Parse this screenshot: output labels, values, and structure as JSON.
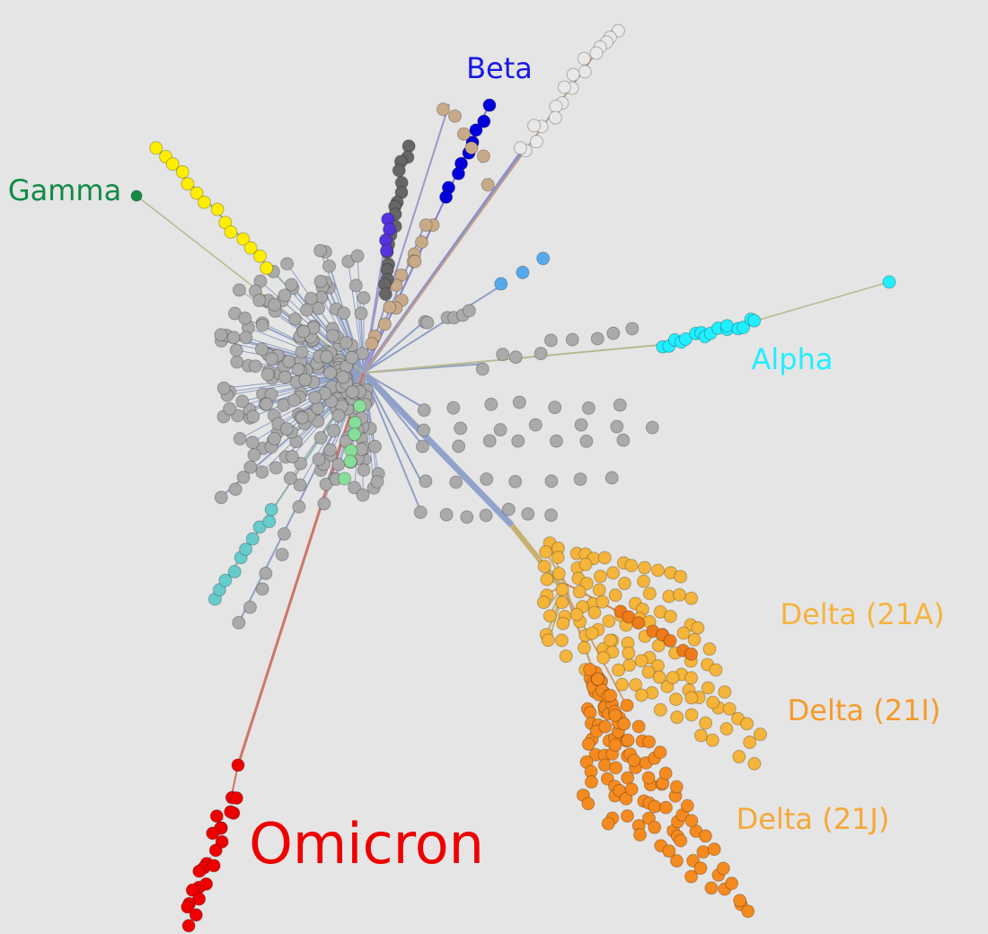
{
  "clade_labels": [
    "Beta",
    "Gamma",
    "Alpha",
    "Delta (21A)",
    "Delta (21I)",
    "Delta (21J)",
    "Omicron"
  ]
}
